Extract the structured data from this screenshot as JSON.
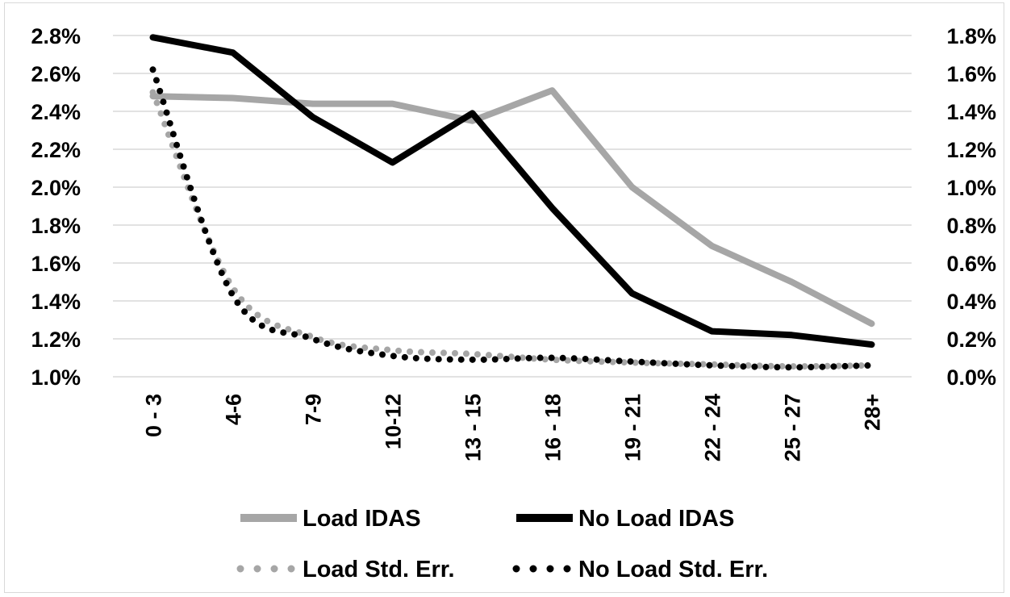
{
  "chart_data": {
    "type": "line",
    "categories": [
      "0 - 3",
      "4-6",
      "7-9",
      "10-12",
      "13 - 15",
      "16 - 18",
      "19 - 21",
      "22 - 24",
      "25 - 27",
      "28+"
    ],
    "y_left": {
      "lim": [
        1.0,
        2.8
      ],
      "ticks": [
        1.0,
        1.2,
        1.4,
        1.6,
        1.8,
        2.0,
        2.2,
        2.4,
        2.6,
        2.8
      ],
      "tick_labels": [
        "1.0%",
        "1.2%",
        "1.4%",
        "1.6%",
        "1.8%",
        "2.0%",
        "2.2%",
        "2.4%",
        "2.6%",
        "2.8%"
      ]
    },
    "y_right": {
      "lim": [
        0.0,
        1.8
      ],
      "ticks": [
        0.0,
        0.2,
        0.4,
        0.6,
        0.8,
        1.0,
        1.2,
        1.4,
        1.6,
        1.8
      ],
      "tick_labels": [
        "0.0%",
        "0.2%",
        "0.4%",
        "0.6%",
        "0.8%",
        "1.0%",
        "1.2%",
        "1.4%",
        "1.6%",
        "1.8%"
      ]
    },
    "grid": true,
    "legend_position": "bottom",
    "series": [
      {
        "name": "Load IDAS",
        "axis": "left",
        "style": "solid",
        "color": "#a6a6a6",
        "values": [
          2.48,
          2.47,
          2.44,
          2.44,
          2.35,
          2.51,
          2.0,
          1.69,
          1.5,
          1.28
        ]
      },
      {
        "name": "No Load IDAS",
        "axis": "left",
        "style": "solid",
        "color": "#000000",
        "values": [
          2.79,
          2.71,
          2.37,
          2.13,
          2.39,
          1.89,
          1.44,
          1.24,
          1.22,
          1.17
        ]
      },
      {
        "name": "Load Std. Err.",
        "axis": "right",
        "style": "dotted",
        "color": "#a6a6a6",
        "values": [
          1.5,
          0.47,
          0.21,
          0.14,
          0.12,
          0.09,
          0.075,
          0.065,
          0.055,
          0.06
        ]
      },
      {
        "name": "No Load Std. Err.",
        "axis": "right",
        "style": "dotted",
        "color": "#000000",
        "values": [
          1.62,
          0.43,
          0.2,
          0.11,
          0.09,
          0.1,
          0.08,
          0.06,
          0.05,
          0.06
        ]
      }
    ]
  }
}
